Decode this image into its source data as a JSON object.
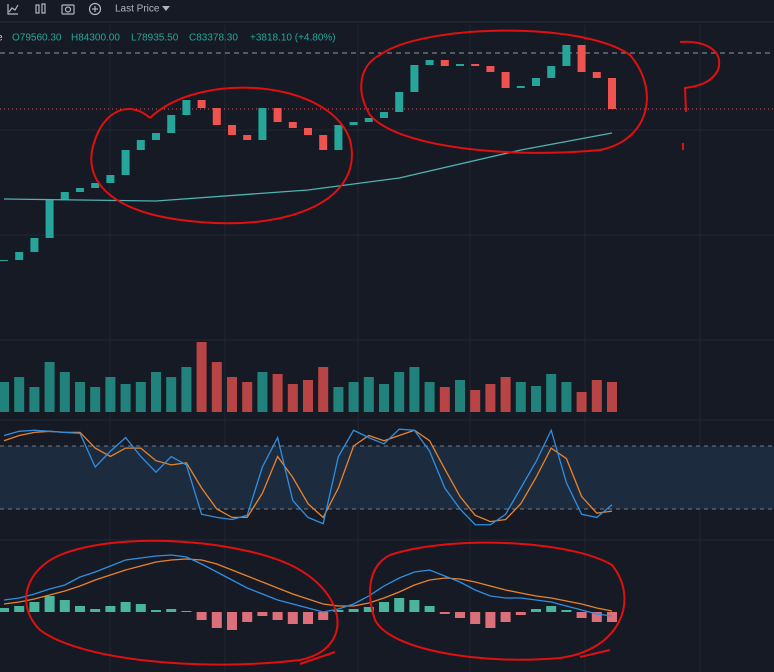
{
  "toolbar": {
    "price_source": "Last Price"
  },
  "legend": {
    "symbol_tail": "e",
    "open": "O79560.30",
    "high": "H84300.00",
    "low": "L78935.50",
    "close": "C83378.30",
    "change": "+3818.10 (+4.80%)"
  },
  "chart_data": {
    "type": "candlestick",
    "closes": [
      77338,
      77658,
      78218,
      79738,
      80058,
      80218,
      80418,
      80738,
      81738,
      82138,
      82418,
      83138,
      83738,
      83418,
      82738,
      82338,
      82138,
      83418,
      82858,
      82618,
      82338,
      81738,
      82738,
      82858,
      83018,
      83258,
      84058,
      85138,
      85338,
      85098,
      85178,
      85098,
      84858,
      84218,
      84298,
      84618,
      85098,
      85938,
      84858,
      84618,
      83378
    ],
    "ylim": [
      74138,
      86738
    ],
    "up_color": "#26a69a",
    "down_color": "#ef5350",
    "ma": {
      "x": [
        0,
        10,
        20,
        26,
        34,
        40
      ],
      "values": [
        79778,
        79698,
        80138,
        80618,
        81738,
        82418
      ],
      "color": "#4fb3b3"
    },
    "volume": {
      "values": [
        30,
        35,
        25,
        50,
        40,
        30,
        25,
        35,
        28,
        30,
        40,
        35,
        45,
        70,
        50,
        35,
        30,
        40,
        38,
        28,
        32,
        45,
        25,
        30,
        35,
        28,
        40,
        45,
        30,
        25,
        32,
        22,
        28,
        35,
        30,
        26,
        38,
        30,
        20,
        32,
        30
      ],
      "ylim": [
        0,
        100
      ]
    },
    "stoch": {
      "k": [
        90,
        94,
        95,
        94,
        93,
        92,
        60,
        75,
        88,
        70,
        55,
        70,
        62,
        15,
        12,
        10,
        14,
        60,
        88,
        28,
        12,
        6,
        70,
        95,
        88,
        82,
        96,
        95,
        75,
        40,
        20,
        5,
        5,
        15,
        40,
        65,
        95,
        45,
        15,
        12,
        24
      ],
      "d": [
        85,
        90,
        93,
        94,
        93,
        93,
        78,
        70,
        78,
        78,
        66,
        62,
        64,
        40,
        20,
        12,
        12,
        35,
        70,
        50,
        25,
        12,
        40,
        80,
        90,
        85,
        90,
        95,
        85,
        58,
        32,
        14,
        8,
        10,
        25,
        50,
        78,
        68,
        32,
        16,
        18
      ],
      "ylim": [
        0,
        100
      ],
      "band": [
        20,
        80
      ],
      "k_color": "#2f8fe0",
      "d_color": "#e8832a"
    },
    "macd": {
      "hist": [
        4,
        6,
        10,
        16,
        12,
        6,
        3,
        6,
        10,
        8,
        2,
        3,
        1,
        -8,
        -16,
        -18,
        -10,
        -4,
        -8,
        -12,
        -12,
        -8,
        2,
        3,
        5,
        10,
        14,
        12,
        6,
        -2,
        -6,
        -12,
        -16,
        -10,
        -3,
        3,
        6,
        2,
        -6,
        -10,
        -10
      ],
      "macd": [
        12,
        14,
        18,
        23,
        27,
        35,
        40,
        46,
        52,
        54,
        56,
        57,
        55,
        48,
        40,
        32,
        24,
        18,
        12,
        8,
        4,
        0,
        3,
        8,
        16,
        26,
        34,
        40,
        42,
        36,
        30,
        22,
        16,
        14,
        14,
        12,
        10,
        6,
        2,
        -2,
        -4
      ],
      "signal": [
        8,
        10,
        13,
        17,
        21,
        26,
        32,
        37,
        42,
        46,
        50,
        52,
        53,
        52,
        48,
        42,
        36,
        30,
        24,
        18,
        13,
        8,
        6,
        6,
        9,
        14,
        20,
        27,
        32,
        34,
        33,
        30,
        26,
        22,
        19,
        16,
        14,
        11,
        8,
        4,
        1
      ],
      "ylim": [
        -48,
        67
      ],
      "macd_color": "#2f8fe0",
      "signal_color": "#e8832a"
    }
  }
}
